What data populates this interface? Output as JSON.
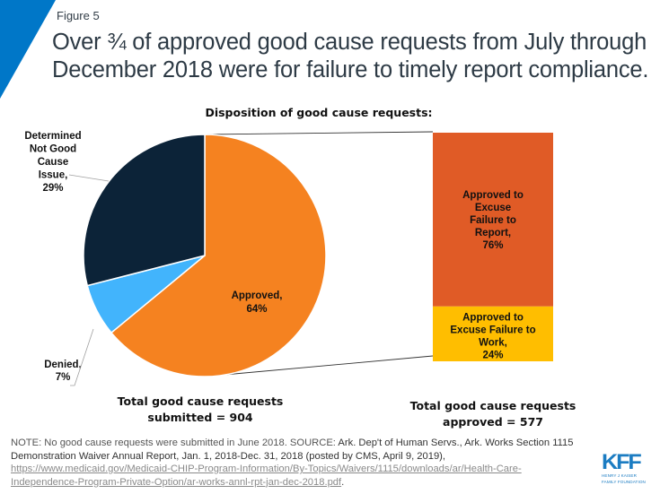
{
  "header": {
    "figure_label": "Figure 5",
    "title_line1": "Over ¾ of approved  good cause requests from July through",
    "title_line2": "December 2018 were for failure to timely report compliance."
  },
  "colors": {
    "accent_blue": "#0077c8",
    "approved": "#f58220",
    "denied": "#42b4fc",
    "not_good_cause": "#0c2338",
    "excuse_report": "#e05b26",
    "excuse_work": "#ffbe00",
    "logo_blue": "#1b7cc2"
  },
  "chart_data": [
    {
      "type": "pie",
      "title": "Disposition of good cause requests:",
      "start_angle": "12 o'clock",
      "direction": "clockwise",
      "slices": [
        {
          "key": "approved",
          "label": "Approved,",
          "pct_label": "64%",
          "value": 64,
          "color": "#f58220"
        },
        {
          "key": "denied",
          "label": "Denied,",
          "pct_label": "7%",
          "value": 7,
          "color": "#42b4fc"
        },
        {
          "key": "not_good_cause",
          "label_lines": [
            "Determined",
            "Not Good",
            "Cause",
            "Issue,"
          ],
          "pct_label": "29%",
          "value": 29,
          "color": "#0c2338"
        }
      ],
      "caption_lines": [
        "Total good cause requests",
        "submitted = 904"
      ],
      "total": 904
    },
    {
      "type": "bar",
      "subtype": "stacked-100",
      "breakdown_of": "approved",
      "segments": [
        {
          "key": "excuse_report",
          "label_lines": [
            "Approved to",
            "Excuse",
            "Failure to",
            "Report,"
          ],
          "pct_label": "76%",
          "value": 76,
          "color": "#e05b26"
        },
        {
          "key": "excuse_work",
          "label_lines": [
            "Approved to",
            "Excuse Failure to",
            "Work,"
          ],
          "pct_label": "24%",
          "value": 24,
          "color": "#ffbe00"
        }
      ],
      "caption_lines": [
        "Total good cause requests",
        "approved = 577"
      ],
      "total": 577
    }
  ],
  "footnote": {
    "note": "NOTE:  No good cause requests were submitted in June 2018. SOURCE: ",
    "source": "Ark. Dep't of Human Servs., Ark. Works Section 1115 Demonstration Waiver Annual  Report, Jan. 1, 2018-Dec. 31, 2018 (posted by CMS, April 9, 2019),",
    "link": "https://www.medicaid.gov/Medicaid-CHIP-Program-Information/By-Topics/Waivers/1115/downloads/ar/Health-Care-Independence-Program-Private-Option/ar-works-annl-rpt-jan-dec-2018.pdf",
    "trailing": "."
  },
  "logo": {
    "mark": "KFF",
    "line1": "HENRY J KAISER",
    "line2": "FAMILY FOUNDATION"
  }
}
